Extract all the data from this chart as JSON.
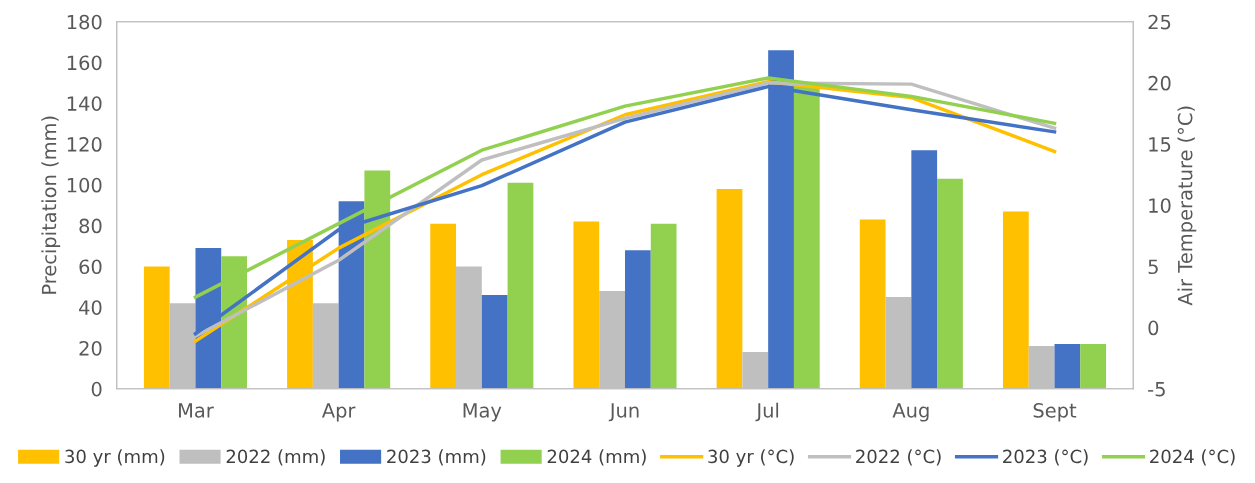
{
  "chart_data": {
    "type": "bar",
    "ylabel": "Precipitation (mm)",
    "y2label": "Air Temperature (°C)",
    "categories": [
      "Mar",
      "Apr",
      "May",
      "Jun",
      "Jul",
      "Aug",
      "Sept"
    ],
    "series": [
      {
        "name": "30 yr (mm)",
        "color": "#ffc000",
        "values": [
          60,
          73,
          81,
          82,
          98,
          83,
          87
        ]
      },
      {
        "name": "2022 (mm)",
        "color": "#bfbfbf",
        "values": [
          42,
          42,
          60,
          48,
          18,
          45,
          21
        ]
      },
      {
        "name": "2023 (mm)",
        "color": "#4472c4",
        "values": [
          69,
          92,
          46,
          68,
          166,
          117,
          22
        ]
      },
      {
        "name": "2024 (mm)",
        "color": "#92d050",
        "values": [
          65,
          107,
          101,
          81,
          149,
          103,
          22
        ]
      },
      {
        "name": "30 yr (°C)",
        "type": "line",
        "axis": "y2",
        "color": "#ffc000",
        "values": [
          -1.1,
          6.5,
          12.5,
          17.4,
          20.1,
          18.8,
          14.4
        ]
      },
      {
        "name": "2022 (°C)",
        "type": "line",
        "axis": "y2",
        "color": "#bfbfbf",
        "values": [
          -0.7,
          5.5,
          13.7,
          17.1,
          20.0,
          19.9,
          16.3
        ]
      },
      {
        "name": "2023 (°C)",
        "type": "line",
        "axis": "y2",
        "color": "#4472c4",
        "values": [
          -0.5,
          8.0,
          11.6,
          16.8,
          19.7,
          17.8,
          16.0
        ]
      },
      {
        "name": "2024 (°C)",
        "type": "line",
        "axis": "y2",
        "color": "#92d050",
        "values": [
          2.5,
          8.5,
          14.5,
          18.1,
          20.4,
          18.9,
          16.7
        ]
      }
    ],
    "ylim": [
      0,
      180
    ],
    "yticks": [
      0,
      20,
      40,
      60,
      80,
      100,
      120,
      140,
      160,
      180
    ],
    "y2lim": [
      -5,
      25
    ],
    "y2ticks": [
      -5,
      0,
      5,
      10,
      15,
      20,
      25
    ],
    "grid": false,
    "legend": "bottom",
    "marker": "none",
    "line_style": "solid"
  }
}
